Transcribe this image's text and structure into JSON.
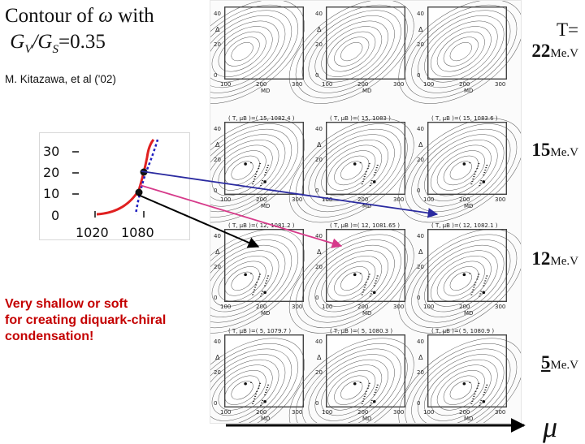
{
  "title": {
    "prefix": "Contour of ",
    "symbol": "ω",
    "suffix": " with",
    "g_ratio_left": "G",
    "g_sub_v": "V",
    "g_slash": "/G",
    "g_sub_s": "S",
    "g_value": "=0.35"
  },
  "citation": "M. Kitazawa,  et al ('02)",
  "temperatures": {
    "t_prefix": "T=",
    "rows": [
      {
        "value": "22",
        "unit": "Me.V"
      },
      {
        "value": "15",
        "unit": "Me.V"
      },
      {
        "value": "12",
        "unit": "Me.V"
      },
      {
        "value": "5",
        "unit": "Me.V"
      }
    ]
  },
  "note_lines": [
    "Very shallow or soft",
    "for creating diquark-chiral",
    "condensation!"
  ],
  "axis_symbol": "μ",
  "inset": {
    "y_ticks": [
      "30",
      "20",
      "10",
      "0"
    ],
    "x_ticks": [
      "1020",
      "1080"
    ]
  },
  "panel_grid": {
    "row_captions": [
      [
        "",
        "",
        ""
      ],
      [
        "( T, μB )=( 15, 1082.4 )",
        "( T, μB )=( 15, 1083 )",
        "( T, μB )=( 15, 1083.6 )"
      ],
      [
        "( T, μB )=( 12, 1081.2 )",
        "( T, μB )=( 12, 1081.65 )",
        "( T, μB )=( 12, 1082.1 )"
      ],
      [
        "( T, μB )=( 5, 1079.7 )",
        "( T, μB )=( 5, 1080.3 )",
        "( T, μB )=( 5, 1080.9 )"
      ]
    ],
    "y_ticks": [
      "40",
      "20",
      "0"
    ],
    "x_ticks": [
      "100",
      "200",
      "300"
    ],
    "y_label": "Δ",
    "x_label": "M",
    "x_label_sub": "D"
  },
  "colors": {
    "arrow_black": "#000000",
    "arrow_pink": "#d63a8a",
    "arrow_blue": "#2a2aa0",
    "curve_red": "#e02020",
    "curve_blue": "#2020c0",
    "note_red": "#c40000"
  }
}
